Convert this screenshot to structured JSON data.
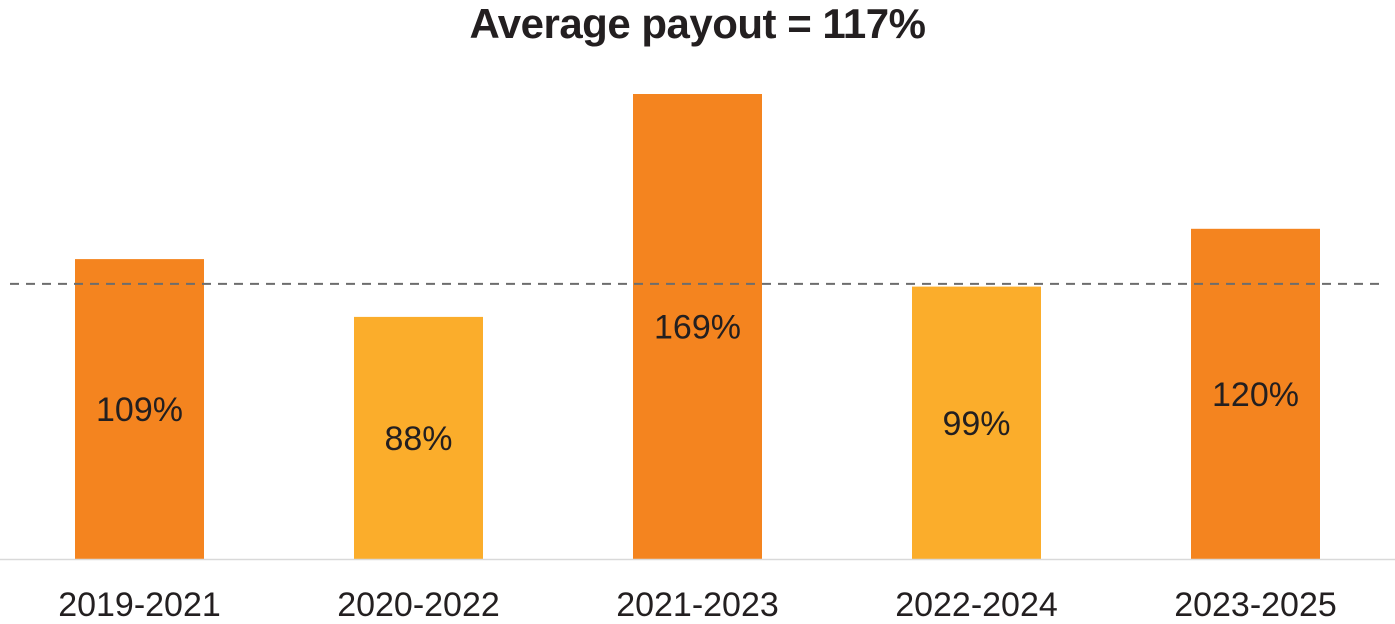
{
  "chart_data": {
    "type": "bar",
    "title": "Average payout = 117%",
    "categories": [
      "2019-2021",
      "2020-2022",
      "2021-2023",
      "2022-2024",
      "2023-2025"
    ],
    "values": [
      109,
      88,
      169,
      99,
      120
    ],
    "value_labels": [
      "109%",
      "88%",
      "169%",
      "99%",
      "120%"
    ],
    "bar_colors": [
      "#f4841f",
      "#fbad2b",
      "#f4841f",
      "#fbad2b",
      "#f4841f"
    ],
    "reference_line": {
      "value": 100,
      "style": "dashed",
      "color": "#6d6d6d"
    },
    "ylim": [
      0,
      175
    ],
    "xlabel": "",
    "ylabel": "",
    "grid": false
  }
}
